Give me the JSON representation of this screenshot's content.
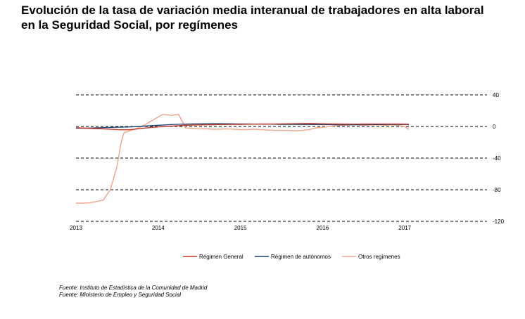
{
  "title": {
    "line1": "Evolución de la tasa de variación media interanual de trabajadores en alta laboral",
    "line2": "en la Seguridad Social, por  regímenes"
  },
  "sources": [
    "Fuente: Instituto de Estadística de la Comunidad de Madrid",
    "Fuente: Ministerio de Empleo y Seguridad Social"
  ],
  "colors": {
    "general": "#c0392b",
    "autonomos": "#1f3f6e",
    "otros": "#f0a890",
    "grid": "#000000"
  },
  "chart_data": {
    "type": "line",
    "title": "",
    "xlabel": "",
    "ylabel": "",
    "ylim": [
      -120,
      40
    ],
    "xlim": [
      2013,
      2018
    ],
    "yticks": [
      "40",
      "0",
      "-40",
      "-80",
      "-120"
    ],
    "xticks": [
      "2013",
      "2014",
      "2015",
      "2016",
      "2017"
    ],
    "grid": true,
    "legend_position": "bottom",
    "series": [
      {
        "name": "Régimen General",
        "x": [
          2013.0,
          2013.083,
          2013.167,
          2013.25,
          2013.333,
          2013.417,
          2013.5,
          2013.583,
          2013.667,
          2013.75,
          2013.833,
          2013.917,
          2014.0,
          2014.083,
          2014.167,
          2014.25,
          2014.333,
          2014.417,
          2014.5,
          2014.583,
          2014.667,
          2014.75,
          2014.833,
          2014.917,
          2015.0,
          2015.083,
          2015.167,
          2015.25,
          2015.333,
          2015.417,
          2015.5,
          2015.583,
          2015.667,
          2015.75,
          2015.833,
          2015.917,
          2016.0,
          2016.083,
          2016.167,
          2016.25,
          2016.333,
          2016.417,
          2016.5,
          2016.583,
          2016.667,
          2016.75,
          2016.833,
          2016.917,
          2017.0,
          2017.05
        ],
        "values": [
          -1.5,
          -2.0,
          -2.5,
          -2.8,
          -3.0,
          -3.5,
          -4.0,
          -4.2,
          -4.0,
          -3.0,
          -2.0,
          -1.2,
          -0.5,
          0.0,
          0.5,
          1.0,
          1.5,
          1.8,
          2.0,
          2.1,
          2.2,
          2.4,
          2.5,
          2.6,
          2.7,
          2.8,
          2.9,
          3.0,
          3.1,
          3.2,
          3.3,
          3.4,
          3.5,
          3.6,
          3.7,
          3.6,
          3.4,
          3.3,
          3.2,
          3.1,
          3.0,
          3.0,
          3.1,
          3.1,
          3.2,
          3.2,
          3.1,
          3.1,
          3.0,
          3.0
        ]
      },
      {
        "name": "Régimen de autónomos",
        "x": [
          2013.0,
          2013.083,
          2013.167,
          2013.25,
          2013.333,
          2013.417,
          2013.5,
          2013.583,
          2013.667,
          2013.75,
          2013.833,
          2013.917,
          2014.0,
          2014.083,
          2014.167,
          2014.25,
          2014.333,
          2014.417,
          2014.5,
          2014.583,
          2014.667,
          2014.75,
          2014.833,
          2014.917,
          2015.0,
          2015.083,
          2015.167,
          2015.25,
          2015.333,
          2015.417,
          2015.5,
          2015.583,
          2015.667,
          2015.75,
          2015.833,
          2015.917,
          2016.0,
          2016.083,
          2016.167,
          2016.25,
          2016.333,
          2016.417,
          2016.5,
          2016.583,
          2016.667,
          2016.75,
          2016.833,
          2016.917,
          2017.0,
          2017.05
        ],
        "values": [
          -2.0,
          -2.2,
          -2.0,
          -1.8,
          -1.5,
          -1.2,
          -1.0,
          -0.8,
          -0.5,
          0.0,
          0.5,
          1.0,
          1.5,
          2.0,
          2.5,
          2.8,
          3.0,
          3.2,
          3.3,
          3.4,
          3.5,
          3.5,
          3.4,
          3.3,
          3.2,
          3.1,
          3.0,
          3.0,
          2.9,
          2.8,
          2.7,
          2.6,
          2.6,
          2.5,
          2.5,
          2.4,
          2.4,
          2.3,
          2.3,
          2.2,
          2.2,
          2.2,
          2.3,
          2.3,
          2.4,
          2.4,
          2.5,
          2.5,
          2.5,
          2.5
        ]
      },
      {
        "name": "Otros regímenes",
        "x": [
          2013.0,
          2013.083,
          2013.167,
          2013.25,
          2013.333,
          2013.417,
          2013.5,
          2013.55,
          2013.583,
          2013.667,
          2013.75,
          2013.833,
          2013.917,
          2014.0,
          2014.05,
          2014.1,
          2014.167,
          2014.2,
          2014.25,
          2014.3,
          2014.333,
          2014.417,
          2014.5,
          2014.583,
          2014.667,
          2014.75,
          2014.833,
          2014.917,
          2015.0,
          2015.083,
          2015.167,
          2015.25,
          2015.333,
          2015.417,
          2015.5,
          2015.583,
          2015.667,
          2015.75,
          2015.833,
          2015.917,
          2016.0,
          2016.083,
          2016.167,
          2016.25,
          2016.333,
          2016.417,
          2016.5,
          2016.583,
          2016.667,
          2016.75,
          2016.833,
          2016.917,
          2017.0,
          2017.05
        ],
        "values": [
          -97,
          -97,
          -96.5,
          -95,
          -93,
          -80,
          -50,
          -20,
          -8,
          -5,
          -2,
          2,
          7,
          12,
          15,
          15,
          14,
          15,
          15,
          5,
          -2,
          -2.5,
          -3,
          -3,
          -3.5,
          -3.5,
          -3,
          -3.5,
          -4,
          -4,
          -3.5,
          -4,
          -4.5,
          -5,
          -5,
          -5,
          -5.5,
          -5,
          -4,
          -2,
          -1,
          0,
          1,
          1.5,
          2,
          2,
          1.5,
          2,
          2,
          1.5,
          2,
          1.5,
          0,
          -4
        ]
      }
    ]
  }
}
